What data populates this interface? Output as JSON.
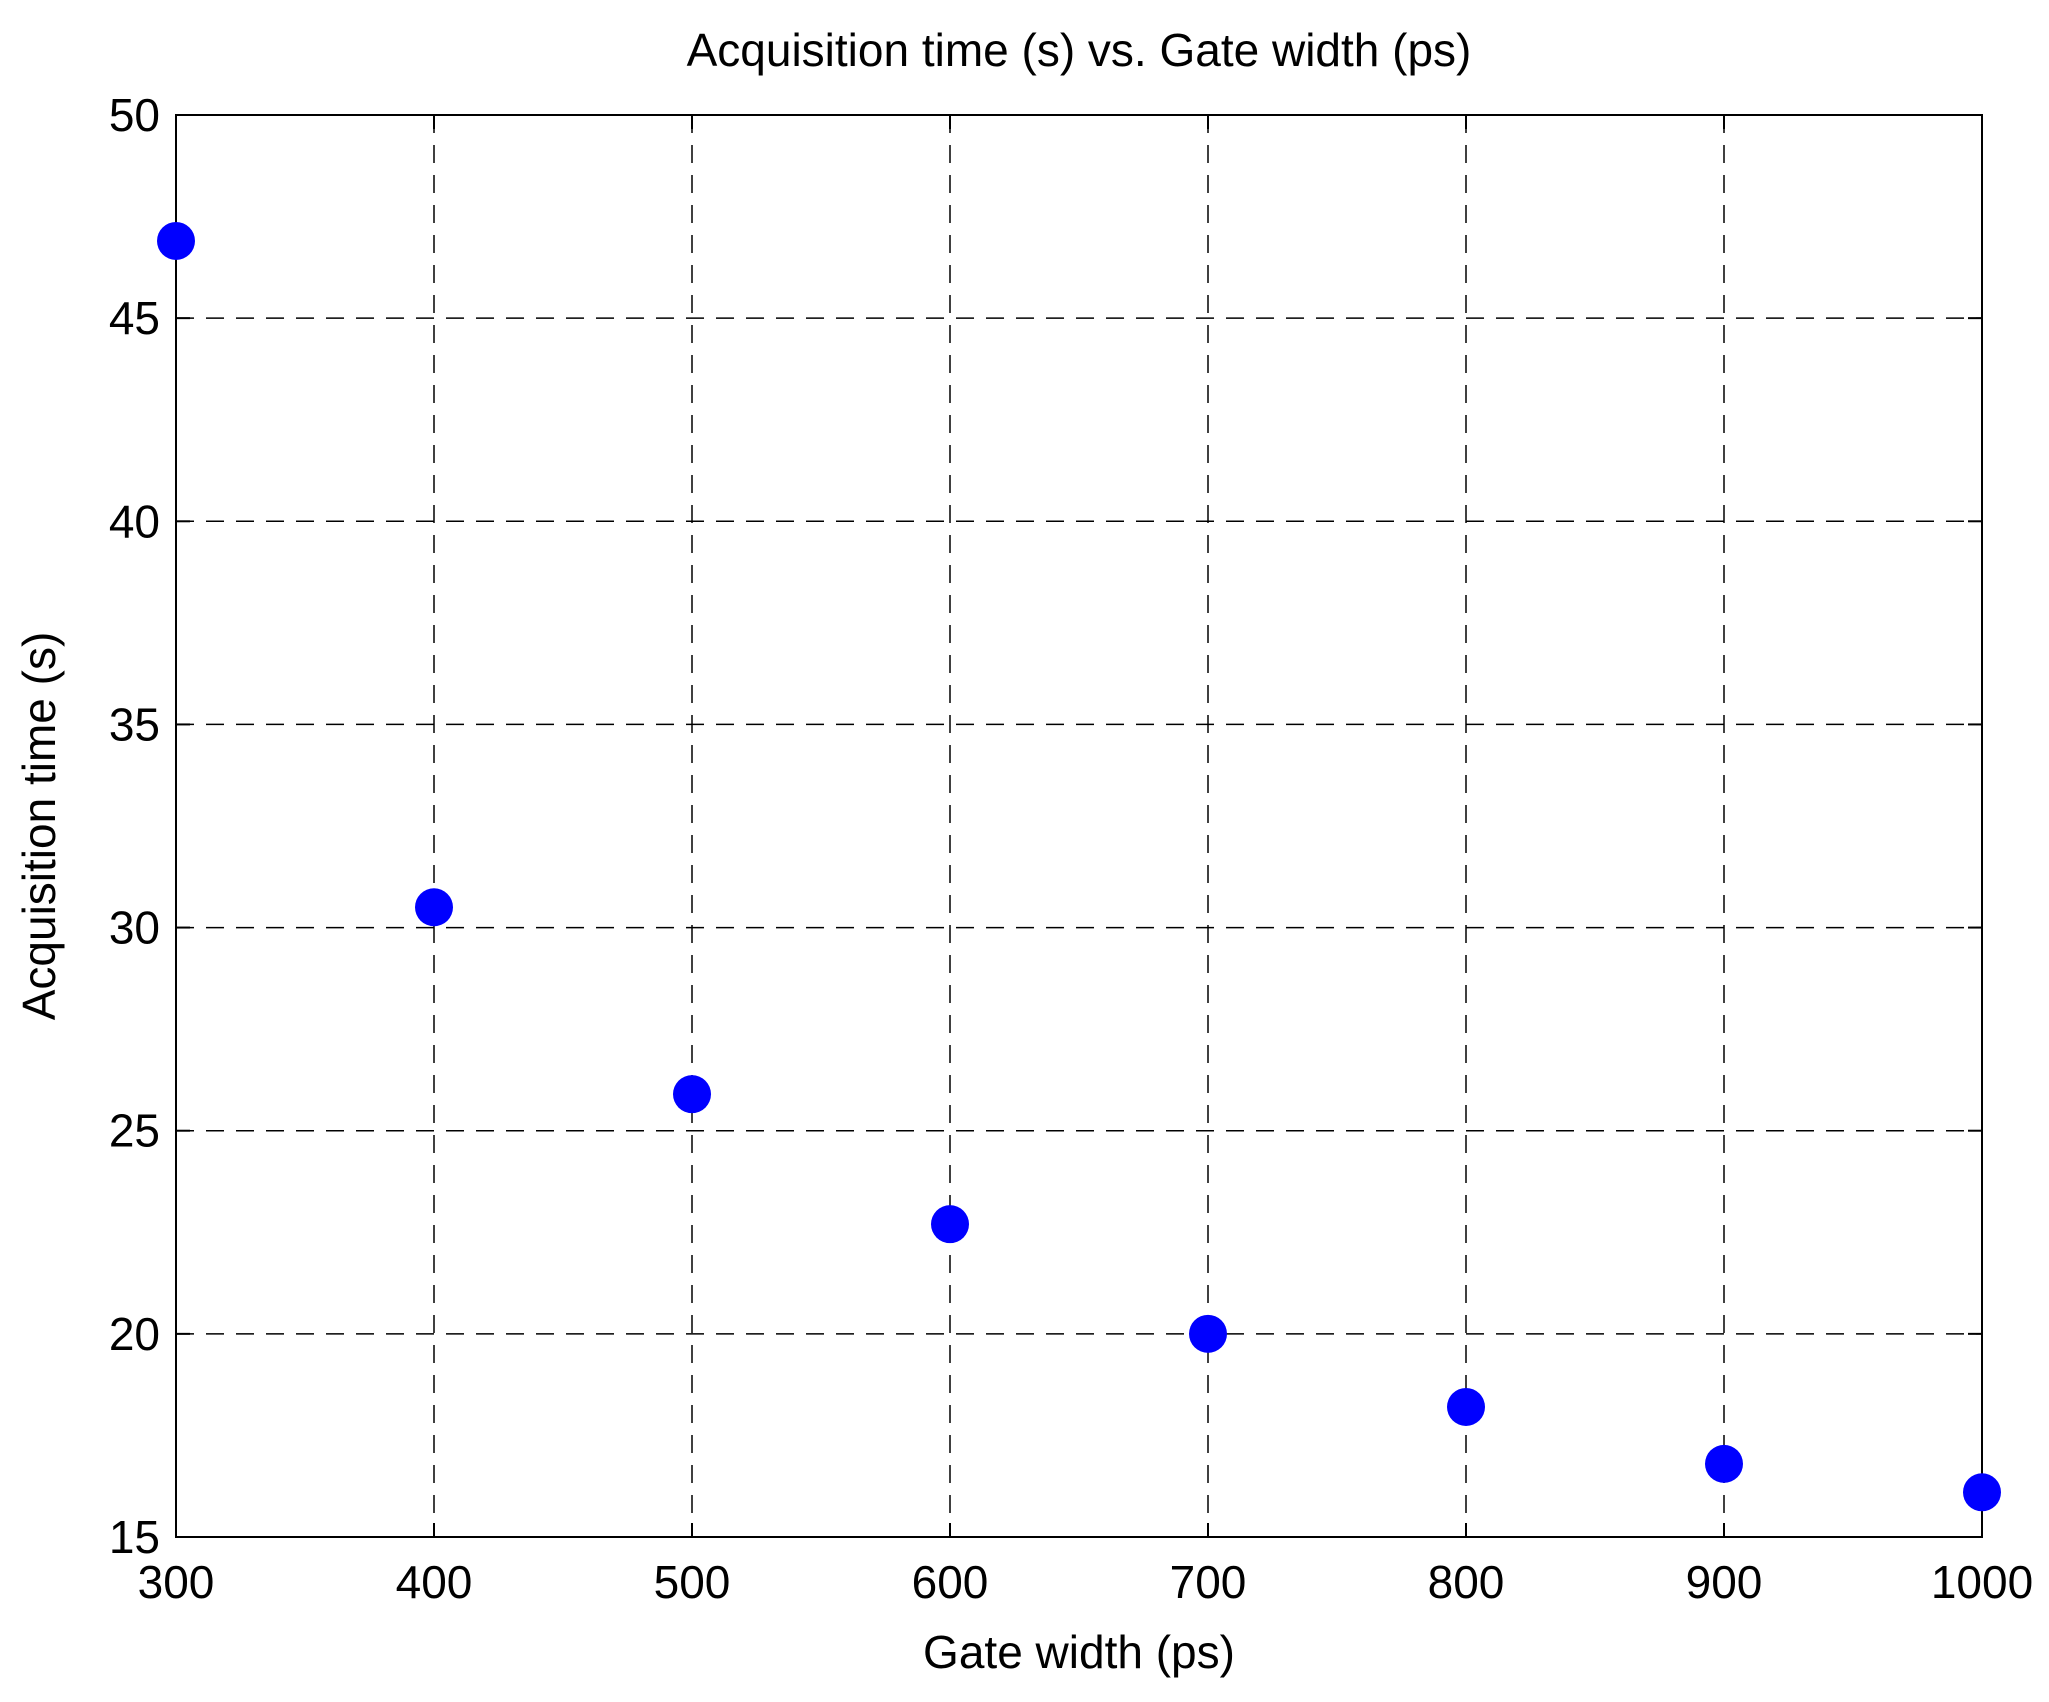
{
  "chart_data": {
    "type": "scatter",
    "title": "Acquisition time (s) vs. Gate width (ps)",
    "xlabel": "Gate width (ps)",
    "ylabel": "Acquisition time (s)",
    "xlim": [
      300,
      1000
    ],
    "ylim": [
      15,
      50
    ],
    "xticks": [
      300,
      400,
      500,
      600,
      700,
      800,
      900,
      1000
    ],
    "yticks": [
      15,
      20,
      25,
      30,
      35,
      40,
      45,
      50
    ],
    "xtick_labels": [
      "300",
      "400",
      "500",
      "600",
      "700",
      "800",
      "900",
      "1000"
    ],
    "ytick_labels": [
      "15",
      "20",
      "25",
      "30",
      "35",
      "40",
      "45",
      "50"
    ],
    "grid": true,
    "grid_style": "dashed",
    "marker_color": "#0000ff",
    "x": [
      300,
      400,
      500,
      600,
      700,
      800,
      900,
      1000
    ],
    "y": [
      46.9,
      30.5,
      25.9,
      22.7,
      20.0,
      18.2,
      16.8,
      16.1
    ]
  }
}
